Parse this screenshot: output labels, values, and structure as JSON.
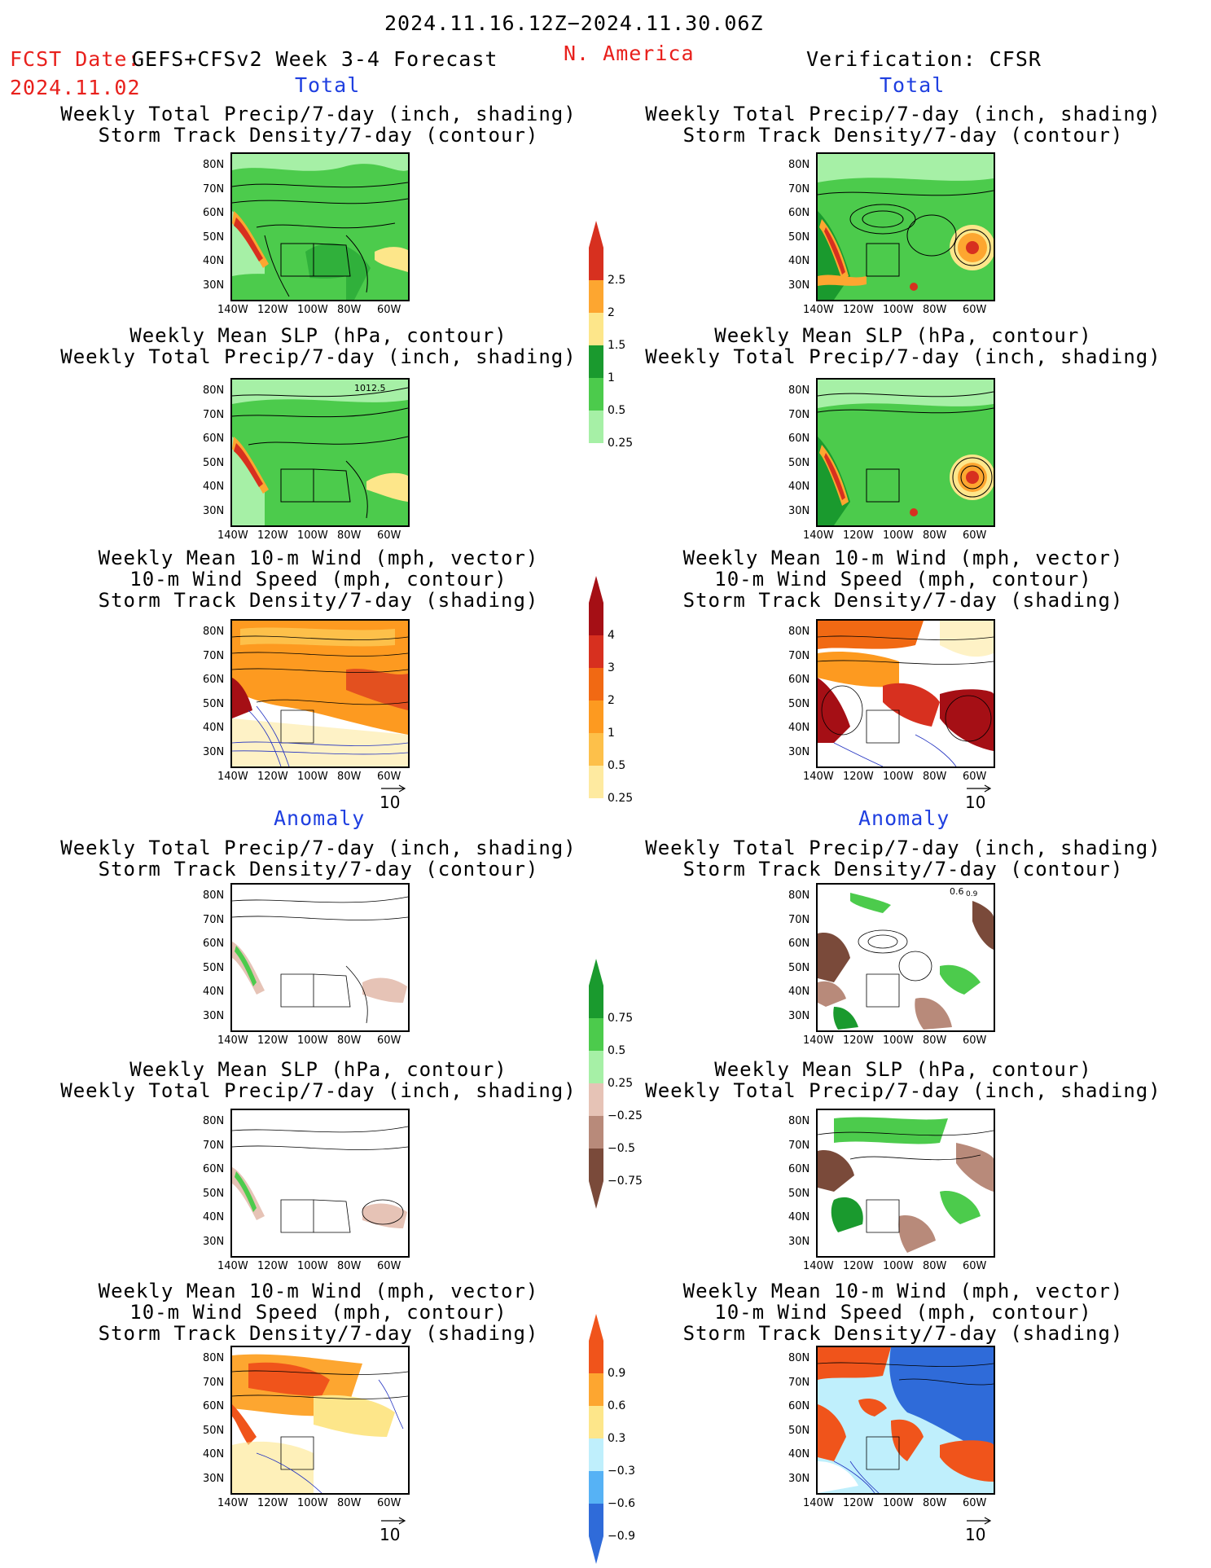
{
  "header": {
    "period": "2024.11.16.12Z−2024.11.30.06Z",
    "fcst_label": "FCST Date:",
    "model": "GEFS+CFSv2 Week 3-4 Forecast",
    "fcst_date": "2024.11.02",
    "region": "N. America",
    "verification": "Verification: CFSR"
  },
  "sections": {
    "total": "Total",
    "anomaly": "Anomaly"
  },
  "titles": {
    "precip_storm": [
      "Weekly Total Precip/7-day (inch, shading)",
      "Storm Track Density/7-day (contour)"
    ],
    "slp_precip": [
      "Weekly Mean SLP (hPa, contour)",
      "Weekly Total Precip/7-day (inch, shading)"
    ],
    "wind_storm": [
      "Weekly Mean 10-m Wind (mph, vector)",
      "10-m Wind Speed (mph, contour)",
      "Storm Track Density/7-day (shading)"
    ]
  },
  "axes": {
    "lat_labels": [
      "80N",
      "70N",
      "60N",
      "50N",
      "40N",
      "30N"
    ],
    "lon_labels": [
      "140W",
      "120W",
      "100W",
      "80W",
      "60W"
    ]
  },
  "vector_ref": "10",
  "contour_labels": {
    "slp_total_fcst": "1012.5",
    "storm_anom_verif_a": "0.6",
    "storm_anom_verif_b": "0.9"
  },
  "colorbars": {
    "precip_total": {
      "labels": [
        "2.5",
        "2",
        "1.5",
        "1",
        "0.5",
        "0.25"
      ],
      "colors": [
        "#d7301f",
        "#fda630",
        "#fde68a",
        "#1a9a2e",
        "#4ccb4c",
        "#a6f0a6"
      ]
    },
    "storm_total": {
      "labels": [
        "4",
        "3",
        "2",
        "1",
        "0.5",
        "0.25"
      ],
      "colors": [
        "#a50f15",
        "#d7301f",
        "#f16913",
        "#fd9a20",
        "#fdc04a",
        "#feeaa0"
      ]
    },
    "precip_anom": {
      "labels": [
        "0.75",
        "0.5",
        "0.25",
        "−0.25",
        "−0.5",
        "−0.75"
      ],
      "colors": [
        "#1a9a2e",
        "#4ccb4c",
        "#a6f0a6",
        "#e6c3b6",
        "#b88a7a",
        "#7a4a3a"
      ]
    },
    "storm_anom": {
      "labels": [
        "0.9",
        "0.6",
        "0.3",
        "−0.3",
        "−0.6",
        "−0.9"
      ],
      "colors": [
        "#f0541b",
        "#fda630",
        "#fde68a",
        "#bfeffc",
        "#56b2f5",
        "#2f6bd9"
      ]
    }
  }
}
